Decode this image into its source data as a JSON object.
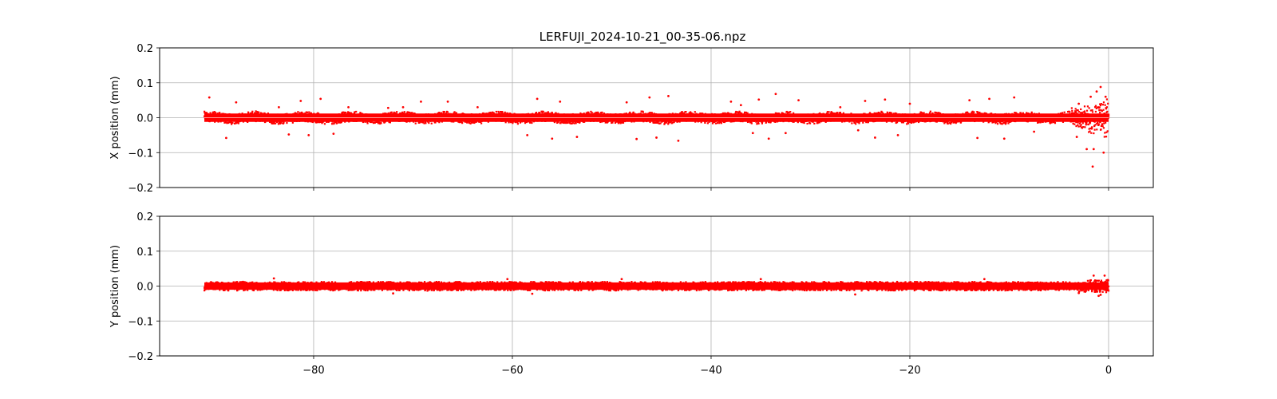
{
  "chart_data": {
    "type": "scatter",
    "title": "LERFUJI_2024-10-21_00-35-06.npz",
    "color": "#ff0000",
    "grid": true,
    "xlim": [
      -95.5,
      4.5
    ],
    "x_ticks": [
      -80,
      -60,
      -40,
      -20,
      0
    ],
    "x_tick_labels": [
      "−80",
      "−60",
      "−40",
      "−20",
      "0"
    ],
    "x_range_of_data": [
      -91,
      0
    ],
    "panels": [
      {
        "ylabel": "X position (mm)",
        "ylim": [
          -0.2,
          0.2
        ],
        "y_ticks": [
          -0.2,
          -0.1,
          0.0,
          0.1,
          0.2
        ],
        "y_tick_labels": [
          "−0.2",
          "−0.1",
          "0.0",
          "0.1",
          "0.2"
        ],
        "band_half_width": 0.016,
        "outliers": [
          {
            "x": -90.5,
            "y": 0.058
          },
          {
            "x": -88.8,
            "y": -0.058
          },
          {
            "x": -87.8,
            "y": 0.044
          },
          {
            "x": -83.5,
            "y": 0.03
          },
          {
            "x": -82.5,
            "y": -0.048
          },
          {
            "x": -81.3,
            "y": 0.048
          },
          {
            "x": -80.5,
            "y": -0.05
          },
          {
            "x": -79.3,
            "y": 0.054
          },
          {
            "x": -78.0,
            "y": -0.046
          },
          {
            "x": -76.5,
            "y": 0.03
          },
          {
            "x": -72.5,
            "y": 0.028
          },
          {
            "x": -71.0,
            "y": 0.03
          },
          {
            "x": -69.2,
            "y": 0.046
          },
          {
            "x": -66.5,
            "y": 0.046
          },
          {
            "x": -63.5,
            "y": 0.03
          },
          {
            "x": -58.5,
            "y": -0.05
          },
          {
            "x": -57.5,
            "y": 0.054
          },
          {
            "x": -56.0,
            "y": -0.06
          },
          {
            "x": -55.2,
            "y": 0.046
          },
          {
            "x": -53.5,
            "y": -0.055
          },
          {
            "x": -48.5,
            "y": 0.044
          },
          {
            "x": -47.5,
            "y": -0.061
          },
          {
            "x": -46.2,
            "y": 0.058
          },
          {
            "x": -45.5,
            "y": -0.057
          },
          {
            "x": -44.3,
            "y": 0.062
          },
          {
            "x": -43.3,
            "y": -0.066
          },
          {
            "x": -38.0,
            "y": 0.046
          },
          {
            "x": -37.0,
            "y": 0.036
          },
          {
            "x": -35.8,
            "y": -0.044
          },
          {
            "x": -35.2,
            "y": 0.052
          },
          {
            "x": -34.2,
            "y": -0.06
          },
          {
            "x": -33.5,
            "y": 0.068
          },
          {
            "x": -32.5,
            "y": -0.044
          },
          {
            "x": -31.2,
            "y": 0.05
          },
          {
            "x": -27.0,
            "y": 0.03
          },
          {
            "x": -25.2,
            "y": -0.036
          },
          {
            "x": -24.5,
            "y": 0.048
          },
          {
            "x": -23.5,
            "y": -0.057
          },
          {
            "x": -22.5,
            "y": 0.052
          },
          {
            "x": -21.2,
            "y": -0.05
          },
          {
            "x": -20.0,
            "y": 0.04
          },
          {
            "x": -14.0,
            "y": 0.05
          },
          {
            "x": -13.2,
            "y": -0.058
          },
          {
            "x": -12.0,
            "y": 0.054
          },
          {
            "x": -10.5,
            "y": -0.06
          },
          {
            "x": -9.5,
            "y": 0.058
          },
          {
            "x": -7.5,
            "y": -0.04
          },
          {
            "x": -3.0,
            "y": 0.04
          },
          {
            "x": -2.2,
            "y": -0.09
          },
          {
            "x": -1.8,
            "y": 0.06
          },
          {
            "x": -1.5,
            "y": -0.09
          },
          {
            "x": -1.2,
            "y": 0.075
          },
          {
            "x": -0.8,
            "y": 0.088
          },
          {
            "x": -0.5,
            "y": -0.1
          },
          {
            "x": -0.3,
            "y": 0.06
          },
          {
            "x": -3.2,
            "y": -0.055
          },
          {
            "x": -1.6,
            "y": -0.14
          }
        ]
      },
      {
        "ylabel": "Y position (mm)",
        "ylim": [
          -0.2,
          0.2
        ],
        "y_ticks": [
          -0.2,
          -0.1,
          0.0,
          0.1,
          0.2
        ],
        "y_tick_labels": [
          "−0.2",
          "−0.1",
          "0.0",
          "0.1",
          "0.2"
        ],
        "band_half_width": 0.014,
        "outliers": [
          {
            "x": -84.0,
            "y": 0.022
          },
          {
            "x": -72.0,
            "y": -0.021
          },
          {
            "x": -60.5,
            "y": 0.02
          },
          {
            "x": -58.0,
            "y": -0.022
          },
          {
            "x": -49.0,
            "y": 0.02
          },
          {
            "x": -35.0,
            "y": 0.02
          },
          {
            "x": -25.5,
            "y": -0.024
          },
          {
            "x": -12.5,
            "y": 0.02
          },
          {
            "x": -3.0,
            "y": -0.02
          },
          {
            "x": -1.5,
            "y": 0.03
          },
          {
            "x": -0.8,
            "y": -0.025
          },
          {
            "x": -0.4,
            "y": 0.03
          },
          {
            "x": -1.0,
            "y": -0.028
          }
        ]
      }
    ]
  }
}
